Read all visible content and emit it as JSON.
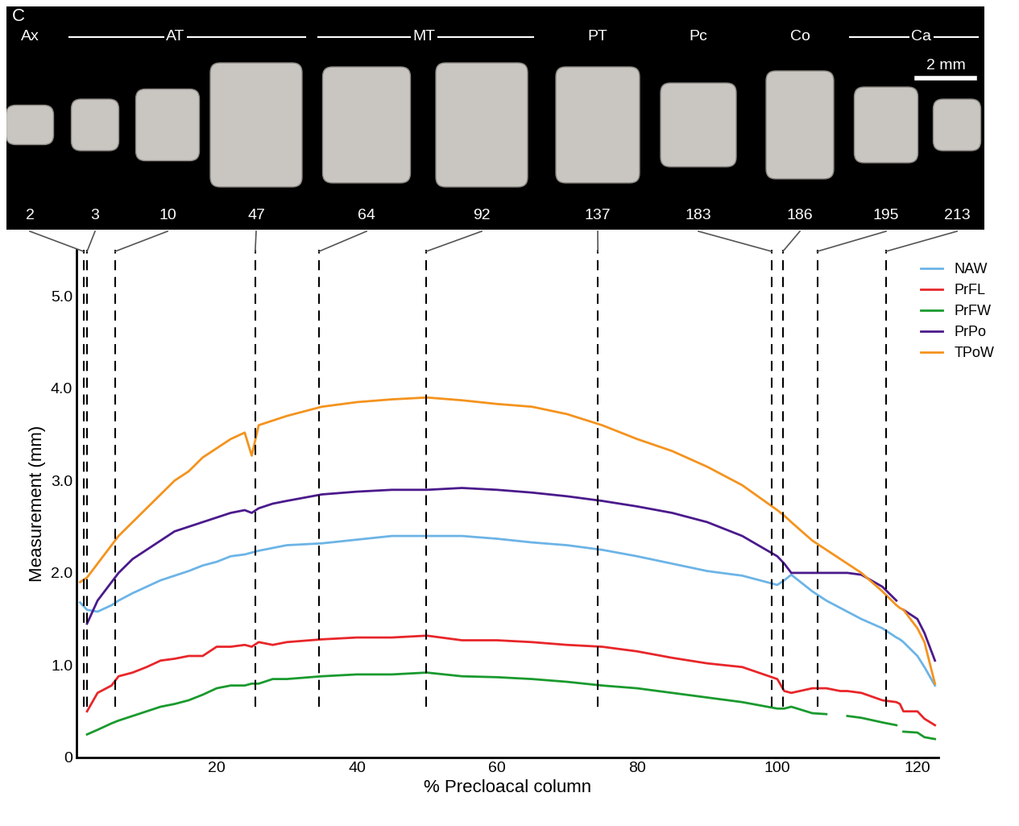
{
  "chart_data": {
    "type": "line",
    "panel_label": "C",
    "scale_bar": "2 mm",
    "x_label": "% Precloacal column",
    "y_label": "Measurement (mm)",
    "xlim": [
      0,
      123
    ],
    "ylim": [
      0,
      5.5
    ],
    "xticks": [
      20,
      40,
      60,
      80,
      100,
      120
    ],
    "yticks": [
      0,
      {
        "value": 1.0,
        "label": "1.0"
      },
      {
        "value": 2.0,
        "label": "2.0"
      },
      {
        "value": 3.0,
        "label": "3.0"
      },
      {
        "value": 4.0,
        "label": "4.0"
      },
      {
        "value": 5.0,
        "label": "5.0"
      }
    ],
    "legend": "upper right",
    "regions": [
      {
        "name": "Ax",
        "vertebrae": [
          2
        ]
      },
      {
        "name": "AT",
        "vertebrae": [
          3,
          10,
          47
        ]
      },
      {
        "name": "MT",
        "vertebrae": [
          64,
          92
        ]
      },
      {
        "name": "PT",
        "vertebrae": [
          137
        ]
      },
      {
        "name": "Pc",
        "vertebrae": [
          183
        ]
      },
      {
        "name": "Co",
        "vertebrae": [
          186
        ]
      },
      {
        "name": "Ca",
        "vertebrae": [
          195,
          213
        ]
      }
    ],
    "vertebrae": [
      {
        "number": 2,
        "x": 1.0
      },
      {
        "number": 3,
        "x": 1.5
      },
      {
        "number": 10,
        "x": 5.5
      },
      {
        "number": 47,
        "x": 25.5
      },
      {
        "number": 64,
        "x": 34.6
      },
      {
        "number": 92,
        "x": 49.9
      },
      {
        "number": 137,
        "x": 74.4
      },
      {
        "number": 183,
        "x": 99.2
      },
      {
        "number": 186,
        "x": 100.8
      },
      {
        "number": 195,
        "x": 105.7
      },
      {
        "number": 213,
        "x": 115.5
      }
    ],
    "x": [
      0.5,
      1.5,
      3,
      5,
      6,
      8,
      10,
      12,
      14,
      16,
      18,
      20,
      22,
      24,
      25,
      26,
      28,
      30,
      35,
      40,
      45,
      50,
      55,
      60,
      65,
      70,
      75,
      80,
      85,
      90,
      95,
      100,
      101,
      102,
      105,
      107,
      109,
      110,
      112,
      115,
      117,
      117.5,
      118,
      120,
      121,
      122.5
    ],
    "series": [
      {
        "name": "NAW",
        "color": "#6cb4e6",
        "values": [
          1.68,
          1.6,
          1.58,
          1.65,
          1.7,
          1.78,
          1.85,
          1.92,
          1.97,
          2.02,
          2.08,
          2.12,
          2.18,
          2.2,
          2.22,
          2.24,
          2.27,
          2.3,
          2.32,
          2.36,
          2.4,
          2.4,
          2.4,
          2.37,
          2.33,
          2.3,
          2.25,
          2.18,
          2.1,
          2.02,
          1.97,
          1.87,
          1.92,
          1.98,
          1.8,
          1.7,
          1.62,
          1.58,
          1.5,
          1.4,
          1.3,
          1.28,
          1.25,
          1.1,
          0.98,
          0.78
        ]
      },
      {
        "name": "PrFL",
        "color": "#e8262a",
        "values": [
          null,
          0.5,
          0.7,
          0.78,
          0.88,
          0.92,
          0.98,
          1.05,
          1.07,
          1.1,
          1.1,
          1.2,
          1.2,
          1.22,
          1.2,
          1.25,
          1.22,
          1.25,
          1.28,
          1.3,
          1.3,
          1.32,
          1.27,
          1.27,
          1.25,
          1.22,
          1.2,
          1.15,
          1.08,
          1.02,
          0.98,
          0.85,
          0.72,
          0.7,
          0.75,
          0.75,
          0.72,
          0.72,
          0.7,
          0.62,
          0.6,
          0.58,
          0.5,
          0.5,
          0.42,
          0.35
        ]
      },
      {
        "name": "PrFW",
        "color": "#1a9a2e",
        "values": [
          null,
          0.25,
          0.3,
          0.37,
          0.4,
          0.45,
          0.5,
          0.55,
          0.58,
          0.62,
          0.68,
          0.75,
          0.78,
          0.78,
          0.8,
          0.8,
          0.85,
          0.85,
          0.88,
          0.9,
          0.9,
          0.92,
          0.88,
          0.87,
          0.85,
          0.82,
          0.78,
          0.75,
          0.7,
          0.65,
          0.6,
          0.53,
          0.53,
          0.55,
          0.48,
          0.47,
          null,
          0.45,
          0.43,
          0.38,
          0.35,
          null,
          0.28,
          0.27,
          0.22,
          0.2
        ]
      },
      {
        "name": "PrPo",
        "color": "#4b1a8c",
        "values": [
          null,
          1.45,
          1.7,
          1.9,
          2.0,
          2.15,
          2.25,
          2.35,
          2.45,
          2.5,
          2.55,
          2.6,
          2.65,
          2.68,
          2.65,
          2.7,
          2.75,
          2.78,
          2.85,
          2.88,
          2.9,
          2.9,
          2.92,
          2.9,
          2.87,
          2.83,
          2.78,
          2.72,
          2.65,
          2.55,
          2.4,
          2.18,
          2.1,
          2.0,
          2.0,
          2.0,
          2.0,
          2.0,
          1.98,
          1.85,
          1.7,
          null,
          1.6,
          1.5,
          1.35,
          1.05
        ]
      },
      {
        "name": "TPoW",
        "color": "#f4931e",
        "values": [
          1.9,
          1.95,
          2.1,
          2.3,
          2.4,
          2.55,
          2.7,
          2.85,
          3.0,
          3.1,
          3.25,
          3.35,
          3.45,
          3.52,
          3.27,
          3.6,
          3.65,
          3.7,
          3.8,
          3.85,
          3.88,
          3.9,
          3.87,
          3.83,
          3.8,
          3.72,
          3.6,
          3.45,
          3.32,
          3.15,
          2.95,
          2.68,
          2.62,
          2.55,
          2.35,
          2.25,
          2.15,
          2.1,
          2.0,
          1.8,
          1.65,
          1.62,
          1.6,
          1.4,
          1.25,
          0.8
        ]
      }
    ]
  }
}
